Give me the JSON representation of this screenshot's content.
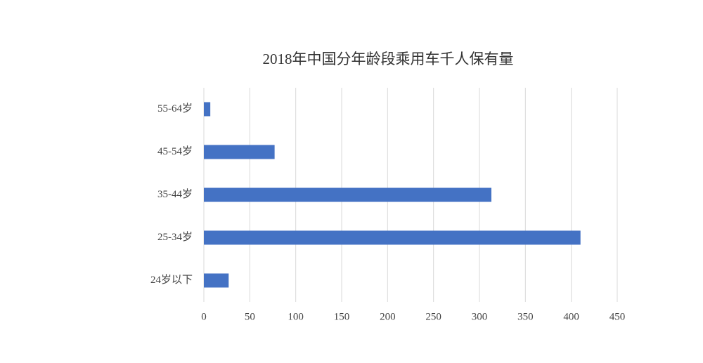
{
  "chart_data": {
    "type": "barh",
    "title": "2018年中国分年龄段乘用车千人保有量",
    "categories": [
      "55-64岁",
      "45-54岁",
      "35-44岁",
      "25-34岁",
      "24岁以下"
    ],
    "values": [
      7,
      77,
      313,
      410,
      27
    ],
    "color": "#4472c4",
    "xlim": [
      0,
      450
    ],
    "xticks": [
      0,
      50,
      100,
      150,
      200,
      250,
      300,
      350,
      400,
      450
    ],
    "grid": true
  }
}
